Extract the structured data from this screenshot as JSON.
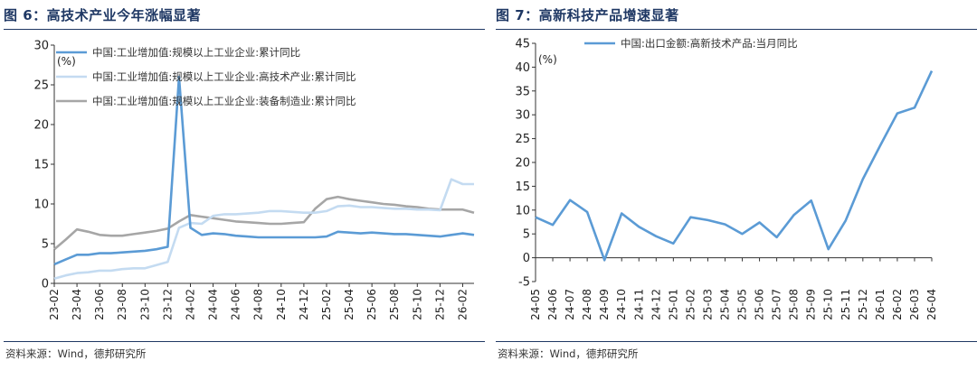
{
  "figures": [
    {
      "title": "图 6：高技术产业今年涨幅显著",
      "source": "资料来源：Wind，德邦研究所"
    },
    {
      "title": "图 7：高新科技产品增速显著",
      "source": "资料来源：Wind，德邦研究所"
    }
  ],
  "chart_data": [
    {
      "type": "line",
      "unit_label": "(%)",
      "ylim": [
        0,
        30
      ],
      "y_ticks": [
        0,
        5,
        10,
        15,
        20,
        25,
        30
      ],
      "x_tick_labels": [
        "23-02",
        "23-04",
        "23-06",
        "23-08",
        "23-10",
        "23-12",
        "24-02",
        "24-04",
        "24-06",
        "24-08",
        "24-10",
        "24-12",
        "25-02",
        "25-04",
        "25-06",
        "25-08",
        "25-10",
        "25-12",
        "26-02"
      ],
      "x": [
        "23-02",
        "23-03",
        "23-04",
        "23-05",
        "23-06",
        "23-07",
        "23-08",
        "23-09",
        "23-10",
        "23-11",
        "23-12",
        "24-01",
        "24-02",
        "24-03",
        "24-04",
        "24-05",
        "24-06",
        "24-07",
        "24-08",
        "24-09",
        "24-10",
        "24-11",
        "24-12",
        "25-01",
        "25-02",
        "25-03",
        "25-04",
        "25-05",
        "25-06",
        "25-07",
        "25-08",
        "25-09",
        "25-10",
        "25-11",
        "25-12",
        "26-01",
        "26-02",
        "26-03"
      ],
      "legend_position": "top-left",
      "grid": false,
      "series": [
        {
          "name": "中国:工业增加值:规模以上工业企业:累计同比",
          "color": "#5b9bd5",
          "values": [
            2.4,
            3.0,
            3.6,
            3.6,
            3.8,
            3.8,
            3.9,
            4.0,
            4.1,
            4.3,
            4.6,
            26.0,
            7.0,
            6.1,
            6.3,
            6.2,
            6.0,
            5.9,
            5.8,
            5.8,
            5.8,
            5.8,
            5.8,
            5.8,
            5.9,
            6.5,
            6.4,
            6.3,
            6.4,
            6.3,
            6.2,
            6.2,
            6.1,
            6.0,
            5.9,
            6.1,
            6.3,
            6.1
          ]
        },
        {
          "name": "中国:工业增加值:规模以上工业企业:高技术产业:累计同比",
          "color": "#c4dbf1",
          "values": [
            0.6,
            1.0,
            1.3,
            1.4,
            1.6,
            1.6,
            1.8,
            1.9,
            1.9,
            2.3,
            2.7,
            7.0,
            7.6,
            7.5,
            8.5,
            8.7,
            8.7,
            8.8,
            8.9,
            9.1,
            9.1,
            9.0,
            8.9,
            8.9,
            9.1,
            9.7,
            9.8,
            9.6,
            9.6,
            9.5,
            9.4,
            9.4,
            9.3,
            9.3,
            9.2,
            13.1,
            12.5,
            12.5
          ]
        },
        {
          "name": "中国:工业增加值:规模以上工业企业:装备制造业:累计同比",
          "color": "#a6a6a6",
          "values": [
            4.3,
            5.5,
            6.8,
            6.5,
            6.1,
            6.0,
            6.0,
            6.2,
            6.4,
            6.6,
            6.9,
            7.8,
            8.6,
            8.4,
            8.2,
            8.0,
            7.8,
            7.7,
            7.6,
            7.5,
            7.5,
            7.6,
            7.7,
            9.4,
            10.6,
            10.9,
            10.6,
            10.4,
            10.2,
            10.0,
            9.9,
            9.7,
            9.6,
            9.4,
            9.3,
            9.3,
            9.3,
            8.9
          ]
        }
      ]
    },
    {
      "type": "line",
      "unit_label": "(%)",
      "ylim": [
        -5,
        45
      ],
      "y_ticks": [
        -5,
        0,
        5,
        10,
        15,
        20,
        25,
        30,
        35,
        40,
        45
      ],
      "x_tick_labels": [
        "24-05",
        "24-06",
        "24-07",
        "24-08",
        "24-09",
        "24-10",
        "24-11",
        "24-12",
        "25-01",
        "25-02",
        "25-03",
        "25-04",
        "25-05",
        "25-06",
        "25-07",
        "25-08",
        "25-09",
        "25-10",
        "25-11",
        "25-12",
        "26-01",
        "26-02",
        "26-03",
        "26-04"
      ],
      "legend_position": "top-left",
      "grid": false,
      "series": [
        {
          "name": "中国:出口金额:高新技术产品:当月同比",
          "color": "#5b9bd5",
          "values": [
            8.5,
            6.9,
            12.1,
            9.6,
            -0.5,
            9.3,
            6.5,
            4.5,
            3.0,
            8.5,
            7.9,
            7.0,
            5.0,
            7.4,
            4.3,
            9.0,
            12.0,
            1.8,
            7.8,
            16.5,
            23.5,
            30.3,
            31.5,
            39.2
          ]
        }
      ]
    }
  ]
}
